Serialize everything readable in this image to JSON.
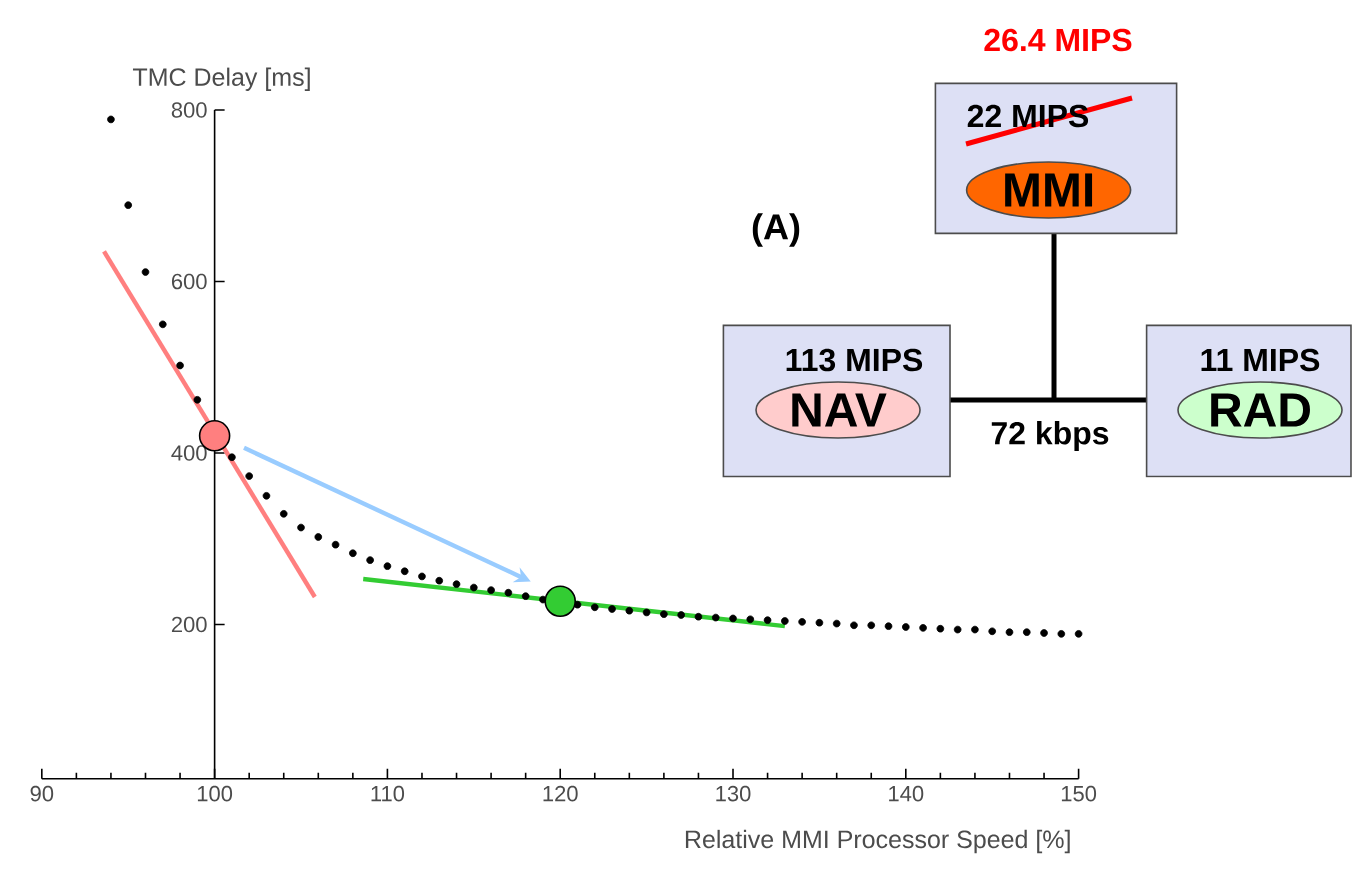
{
  "chart_data": {
    "type": "scatter",
    "xlabel": "Relative MMI Processor Speed [%]",
    "ylabel": "TMC Delay [ms]",
    "xlim": [
      90,
      150
    ],
    "ylim": [
      20,
      800
    ],
    "xticks": [
      90,
      {
        "value": 92,
        "label": null
      },
      {
        "value": 94,
        "label": null
      },
      {
        "value": 96,
        "label": null
      },
      {
        "value": 98,
        "label": null
      },
      100,
      {
        "value": 102,
        "label": null
      },
      {
        "value": 104,
        "label": null
      },
      {
        "value": 106,
        "label": null
      },
      {
        "value": 108,
        "label": null
      },
      110,
      {
        "value": 112,
        "label": null
      },
      {
        "value": 114,
        "label": null
      },
      {
        "value": 116,
        "label": null
      },
      {
        "value": 118,
        "label": null
      },
      120,
      {
        "value": 122,
        "label": null
      },
      {
        "value": 124,
        "label": null
      },
      {
        "value": 126,
        "label": null
      },
      {
        "value": 128,
        "label": null
      },
      130,
      {
        "value": 132,
        "label": null
      },
      {
        "value": 134,
        "label": null
      },
      {
        "value": 136,
        "label": null
      },
      {
        "value": 138,
        "label": null
      },
      140,
      {
        "value": 142,
        "label": null
      },
      {
        "value": 144,
        "label": null
      },
      {
        "value": 146,
        "label": null
      },
      {
        "value": 148,
        "label": null
      },
      150
    ],
    "yticks": [
      200,
      400,
      600,
      800
    ],
    "series": [
      {
        "marker": "circle",
        "color": "#000000",
        "x": [
          94,
          95,
          96,
          97,
          98,
          99,
          100,
          101,
          102,
          103,
          104,
          105,
          106,
          107,
          108,
          109,
          110,
          111,
          112,
          113,
          114,
          115,
          116,
          117,
          118,
          119,
          120,
          121,
          122,
          123,
          124,
          125,
          126,
          127,
          128,
          129,
          130,
          131,
          132,
          133,
          134,
          135,
          136,
          137,
          138,
          139,
          140,
          141,
          142,
          143,
          144,
          145,
          146,
          147,
          148,
          149,
          150
        ],
        "values": [
          789,
          689,
          611,
          550,
          502,
          462,
          null,
          395,
          373,
          350,
          329,
          313,
          302,
          293,
          283,
          275,
          268,
          262,
          256,
          251,
          247,
          243,
          240,
          237,
          233,
          229,
          null,
          223,
          220,
          218,
          216,
          214,
          212,
          211,
          209,
          208,
          207,
          206,
          205,
          204,
          203,
          202,
          201,
          199,
          199,
          198,
          197,
          196,
          195,
          194,
          194,
          192,
          191,
          191,
          190,
          189,
          189
        ]
      },
      {
        "type": "line",
        "marker": "none",
        "color": "#ff7f7f",
        "x": [
          93.6,
          105.8
        ],
        "values": [
          635,
          232
        ]
      },
      {
        "type": "line",
        "marker": "none",
        "color": "#33cc33",
        "x": [
          108.6,
          133.0
        ],
        "values": [
          253,
          198
        ]
      },
      {
        "type": "bubble",
        "marker": "circle",
        "color": "#ff7f7f",
        "x": [
          100
        ],
        "values": [
          420
        ],
        "sizes": [
          1
        ]
      },
      {
        "type": "bubble",
        "marker": "circle",
        "color": "#33cc33",
        "x": [
          120
        ],
        "values": [
          227
        ],
        "sizes": [
          1
        ]
      }
    ],
    "annotations": [
      "26.4 MIPS",
      "22 MIPS",
      "MMI",
      "(A)",
      "113 MIPS",
      "NAV",
      "11 MIPS",
      "RAD",
      "72 kbps"
    ]
  }
}
